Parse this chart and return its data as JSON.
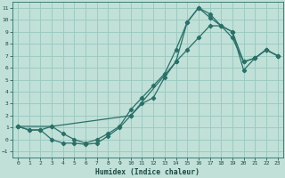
{
  "xlabel": "Humidex (Indice chaleur)",
  "bg_color": "#c0e0d8",
  "grid_color": "#98c8be",
  "line_color": "#2a7068",
  "xlim": [
    -0.5,
    23.5
  ],
  "ylim": [
    -1.5,
    11.5
  ],
  "xticks": [
    0,
    1,
    2,
    3,
    4,
    5,
    6,
    7,
    8,
    9,
    10,
    11,
    12,
    13,
    14,
    15,
    16,
    17,
    18,
    19,
    20,
    21,
    22,
    23
  ],
  "yticks": [
    -1,
    0,
    1,
    2,
    3,
    4,
    5,
    6,
    7,
    8,
    9,
    10,
    11
  ],
  "curve1_x": [
    0,
    1,
    2,
    3,
    4,
    5,
    6,
    7,
    8,
    9,
    10,
    11,
    12,
    13,
    14,
    15,
    16,
    17,
    18,
    19,
    20,
    21,
    22,
    23
  ],
  "curve1_y": [
    1.1,
    0.8,
    0.8,
    0.0,
    -0.3,
    -0.3,
    -0.4,
    -0.3,
    0.3,
    1.0,
    2.0,
    3.0,
    3.5,
    5.2,
    6.5,
    7.5,
    8.5,
    9.5,
    9.5,
    8.5,
    6.5,
    6.8,
    7.5,
    7.0
  ],
  "curve2_x": [
    0,
    1,
    2,
    3,
    4,
    5,
    6,
    7,
    8,
    9,
    10,
    11,
    12,
    13,
    14,
    15,
    16,
    17,
    18,
    19,
    20,
    21,
    22,
    23
  ],
  "curve2_y": [
    1.1,
    0.8,
    0.8,
    1.1,
    0.5,
    0.0,
    -0.3,
    0.0,
    0.5,
    1.1,
    2.5,
    3.5,
    4.5,
    5.5,
    7.5,
    9.8,
    11.0,
    10.5,
    9.5,
    9.0,
    5.8,
    6.8,
    7.5,
    7.0
  ],
  "curve3_x": [
    0,
    3,
    10,
    14,
    15,
    16,
    17,
    18,
    19,
    20,
    21,
    22,
    23
  ],
  "curve3_y": [
    1.1,
    1.1,
    2.0,
    6.5,
    9.8,
    11.0,
    10.2,
    9.5,
    9.0,
    6.5,
    6.8,
    7.5,
    7.0
  ]
}
